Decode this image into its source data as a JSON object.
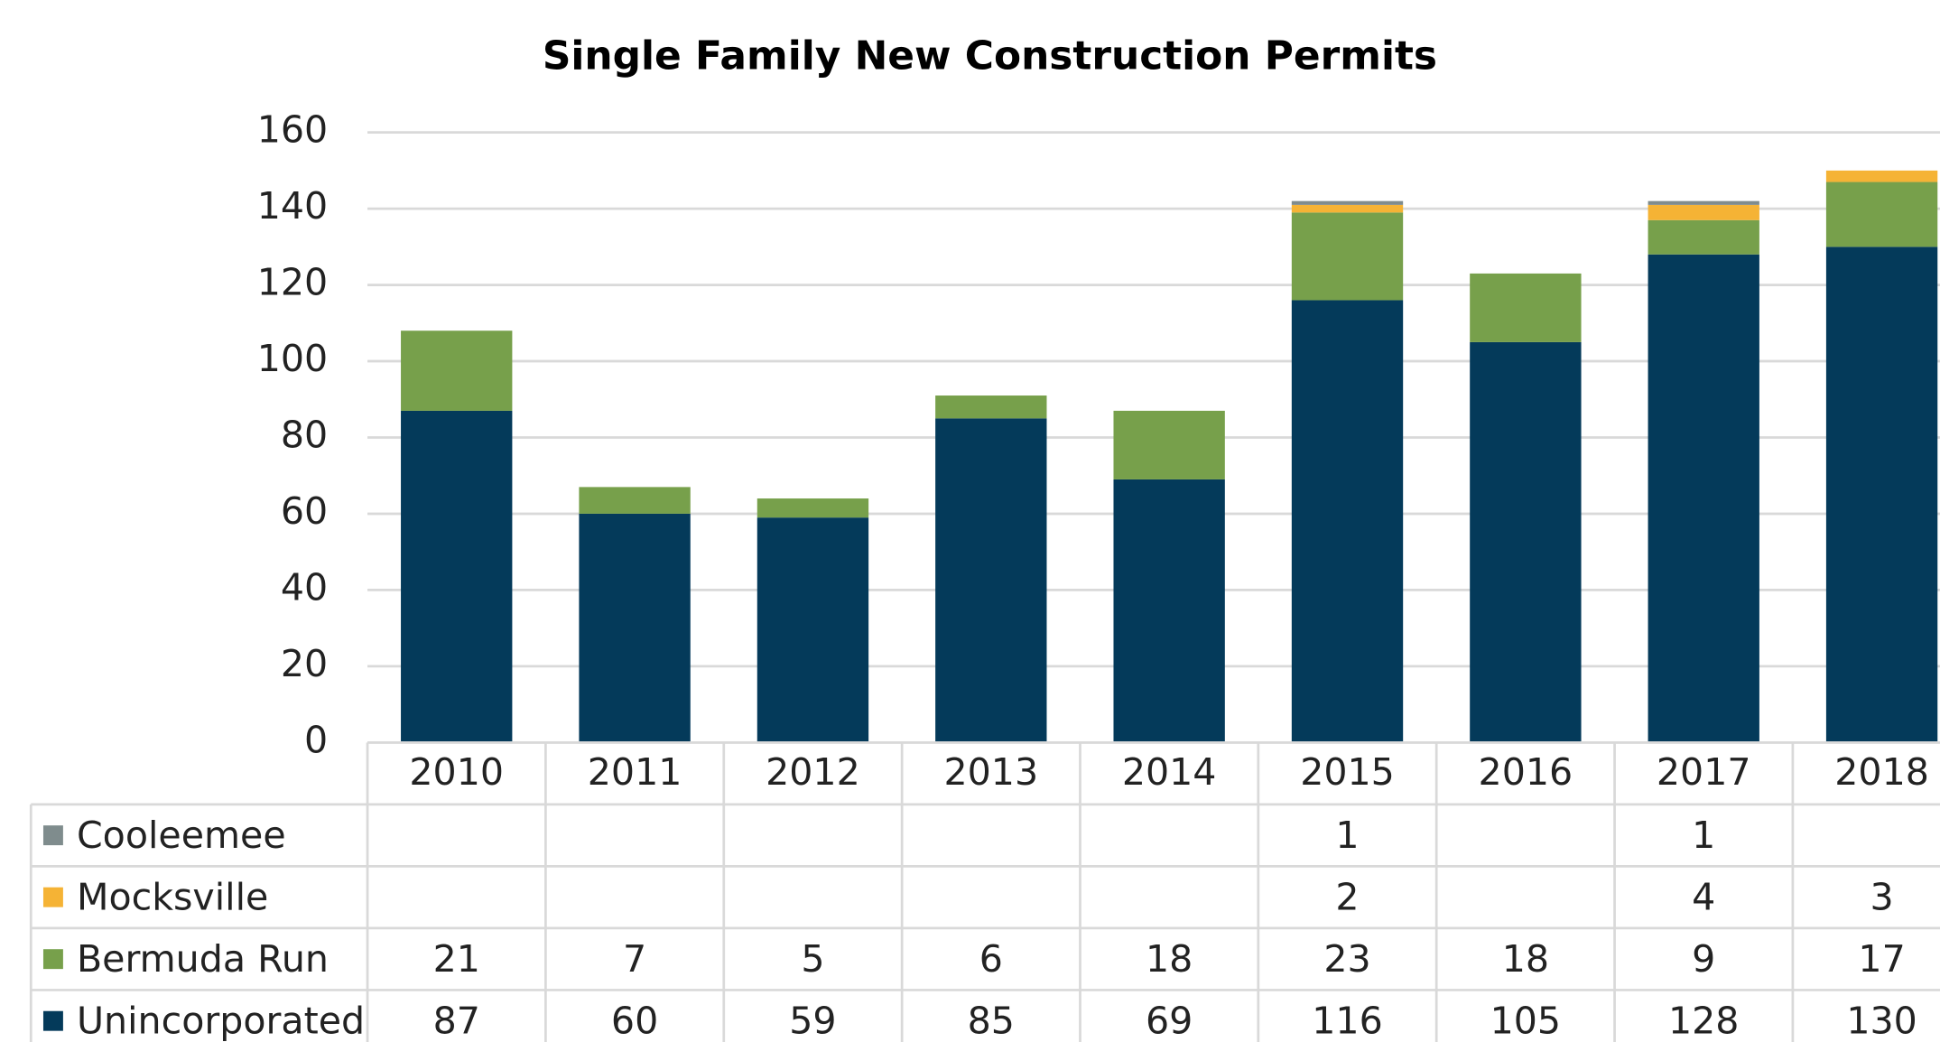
{
  "chart_data": {
    "type": "bar",
    "stacked": true,
    "title": "Single Family New Construction Permits",
    "categories": [
      "2010",
      "2011",
      "2012",
      "2013",
      "2014",
      "2015",
      "2016",
      "2017",
      "2018"
    ],
    "series": [
      {
        "name": "Unincorporated",
        "color": "#043a5a",
        "values": [
          87,
          60,
          59,
          85,
          69,
          116,
          105,
          128,
          130
        ]
      },
      {
        "name": "Bermuda Run",
        "color": "#77a04b",
        "values": [
          21,
          7,
          5,
          6,
          18,
          23,
          18,
          9,
          17
        ]
      },
      {
        "name": "Mocksville",
        "color": "#f5b335",
        "values": [
          null,
          null,
          null,
          null,
          null,
          2,
          null,
          4,
          3
        ]
      },
      {
        "name": "Cooleemee",
        "color": "#7f8c8d",
        "values": [
          null,
          null,
          null,
          null,
          null,
          1,
          null,
          1,
          null
        ]
      }
    ],
    "ylim": [
      0,
      160
    ],
    "yticks": [
      0,
      20,
      40,
      60,
      80,
      100,
      120,
      140,
      160
    ],
    "grid": true
  }
}
